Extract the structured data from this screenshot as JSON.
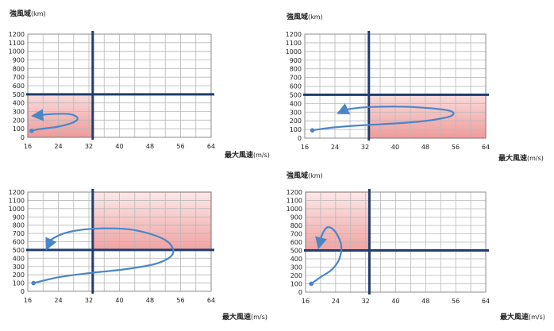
{
  "chart_data": [
    {
      "type": "line",
      "ylabel": "強風域",
      "ylabel_unit": "(km)",
      "xlabel": "最大風速",
      "xlabel_unit": "(m/s)",
      "xlim": [
        16,
        64
      ],
      "ylim": [
        0,
        1200
      ],
      "x_ticks": [
        "16",
        "24",
        "32",
        "40",
        "48",
        "56",
        "64"
      ],
      "y_ticks": [
        "0",
        "100",
        "200",
        "300",
        "400",
        "500",
        "600",
        "700",
        "800",
        "900",
        "1000",
        "1100",
        "1200"
      ],
      "grid": true,
      "thresholds": {
        "x": 33,
        "y": 500
      },
      "highlight_quadrant": "lower-left",
      "series": [
        {
          "x": [
            17,
            19,
            24,
            28,
            29,
            27,
            22,
            17.5
          ],
          "y": [
            75,
            95,
            125,
            175,
            225,
            270,
            270,
            250
          ],
          "arrow": "end"
        }
      ]
    },
    {
      "type": "line",
      "ylabel": "強風域",
      "ylabel_unit": "(km)",
      "xlabel": "最大風速",
      "xlabel_unit": "(m/s)",
      "xlim": [
        16,
        64
      ],
      "ylim": [
        0,
        1200
      ],
      "x_ticks": [
        "16",
        "24",
        "32",
        "40",
        "48",
        "56",
        "64"
      ],
      "y_ticks": [
        "0",
        "100",
        "200",
        "300",
        "400",
        "500",
        "600",
        "700",
        "800",
        "900",
        "1000",
        "1100",
        "1200"
      ],
      "grid": true,
      "thresholds": {
        "x": 33,
        "y": 500
      },
      "highlight_quadrant": "lower-right",
      "series": [
        {
          "x": [
            18,
            24,
            32,
            42,
            50,
            55,
            54,
            44,
            34,
            27,
            25
          ],
          "y": [
            90,
            125,
            150,
            175,
            210,
            260,
            320,
            360,
            360,
            330,
            290
          ],
          "arrow": "end"
        }
      ]
    },
    {
      "type": "line",
      "ylabel": "",
      "ylabel_unit": "",
      "xlabel": "最大風速",
      "xlabel_unit": "(m/s)",
      "xlim": [
        16,
        64
      ],
      "ylim": [
        0,
        1200
      ],
      "x_ticks": [
        "16",
        "24",
        "32",
        "40",
        "48",
        "56",
        "64"
      ],
      "y_ticks": [
        "0",
        "100",
        "200",
        "300",
        "400",
        "500",
        "600",
        "700",
        "800",
        "900",
        "1000",
        "1100",
        "1200"
      ],
      "grid": true,
      "thresholds": {
        "x": 33,
        "y": 500
      },
      "highlight_quadrant": "upper-right",
      "series": [
        {
          "x": [
            17.5,
            24,
            32,
            42,
            50,
            54,
            52,
            44,
            35,
            27,
            22,
            21
          ],
          "y": [
            100,
            170,
            220,
            270,
            340,
            460,
            620,
            740,
            760,
            720,
            620,
            520
          ],
          "arrow": "end"
        }
      ]
    },
    {
      "type": "line",
      "ylabel": "強風域",
      "ylabel_unit": "(km)",
      "xlabel": "最大風速",
      "xlabel_unit": "(m/s)",
      "xlim": [
        16,
        64
      ],
      "ylim": [
        0,
        1200
      ],
      "x_ticks": [
        "16",
        "24",
        "32",
        "40",
        "48",
        "56",
        "64"
      ],
      "y_ticks": [
        "0",
        "100",
        "200",
        "300",
        "400",
        "500",
        "600",
        "700",
        "800",
        "900",
        "1000",
        "1100",
        "1200"
      ],
      "grid": true,
      "thresholds": {
        "x": 33,
        "y": 500
      },
      "highlight_quadrant": "upper-left",
      "series": [
        {
          "x": [
            17.5,
            20,
            23,
            25,
            25.5,
            24,
            22,
            20.5,
            19.5
          ],
          "y": [
            100,
            180,
            270,
            400,
            560,
            720,
            780,
            700,
            540
          ],
          "arrow": "end"
        }
      ]
    }
  ]
}
